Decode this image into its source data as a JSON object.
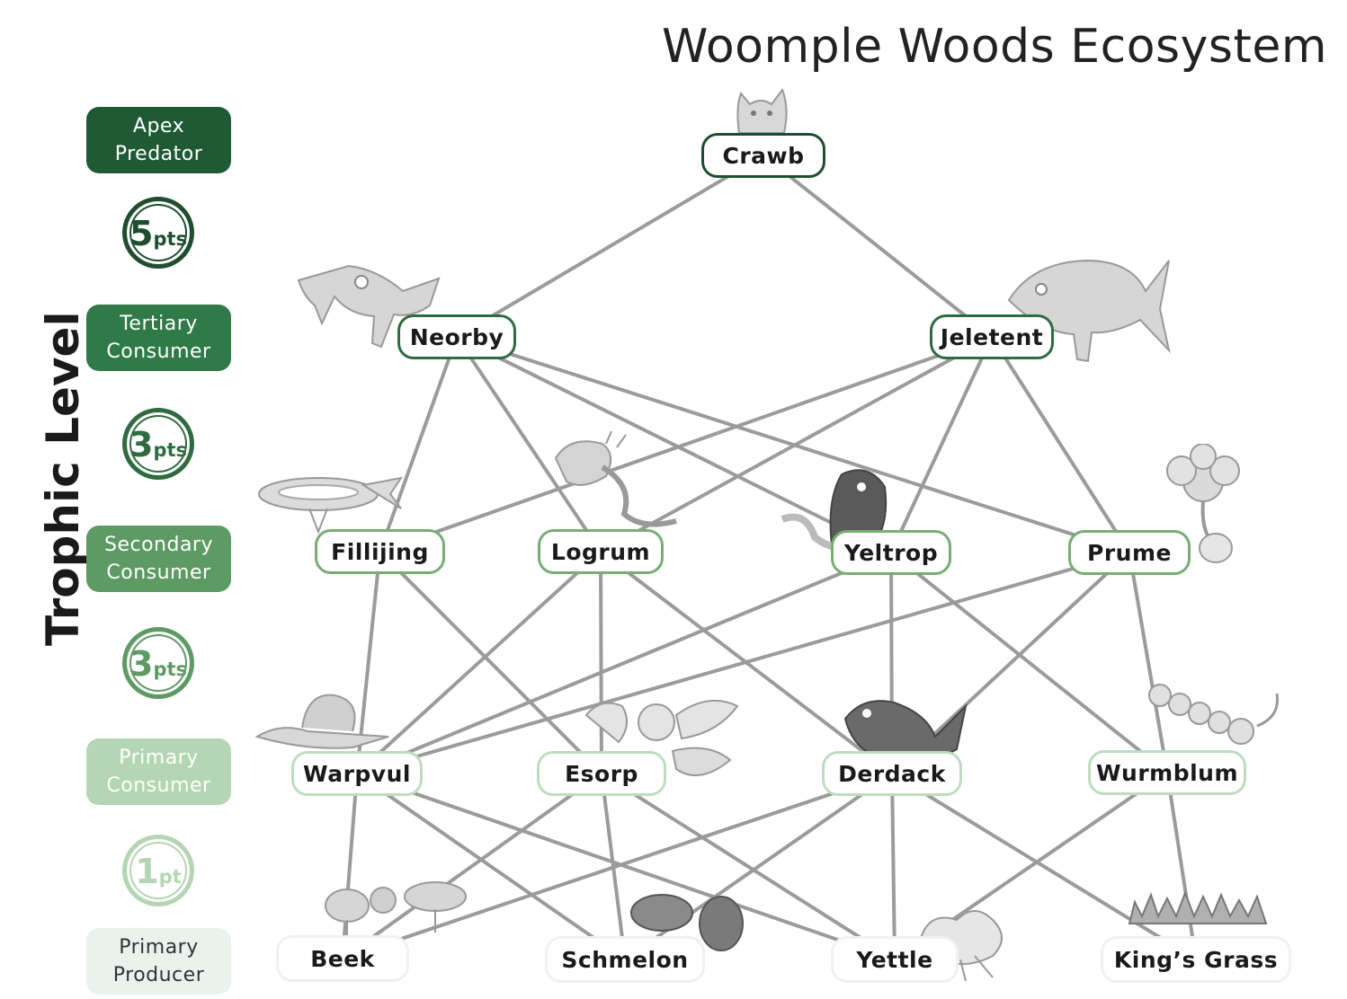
{
  "title": "Woomple Woods Ecosystem",
  "axis_label": "Trophic Level",
  "levels": [
    {
      "key": "apex",
      "label_line1": "Apex",
      "label_line2": "Predator",
      "points_num": "5",
      "points_unit": "pts",
      "bg": "#1f5a35",
      "text": "#ffffff",
      "ring": "#1f4d2f"
    },
    {
      "key": "tert",
      "label_line1": "Tertiary",
      "label_line2": "Consumer",
      "points_num": "3",
      "points_unit": "pts",
      "bg": "#2f7a47",
      "text": "#ffffff",
      "ring": "#2f6b40"
    },
    {
      "key": "sec",
      "label_line1": "Secondary",
      "label_line2": "Consumer",
      "points_num": "3",
      "points_unit": "pts",
      "bg": "#5e9a63",
      "text": "#ffffff",
      "ring": "#5e9a63"
    },
    {
      "key": "prim",
      "label_line1": "Primary",
      "label_line2": "Consumer",
      "points_num": "1",
      "points_unit": "pt",
      "bg": "#b4d6b4",
      "text": "#ffffff",
      "ring": "#b4d6b4"
    },
    {
      "key": "prod",
      "label_line1": "Primary",
      "label_line2": "Producer",
      "bg": "#eaf2ee",
      "text": "#333333"
    }
  ],
  "organisms": {
    "crawb": "Crawb",
    "neorby": "Neorby",
    "jeletent": "Jeletent",
    "fillijing": "Fillijing",
    "logrum": "Logrum",
    "yeltrop": "Yeltrop",
    "prume": "Prume",
    "warpvul": "Warpvul",
    "esorp": "Esorp",
    "derdack": "Derdack",
    "wurmblum": "Wurmblum",
    "beek": "Beek",
    "schmelon": "Schmelon",
    "yettle": "Yettle",
    "kings_grass": "King’s Grass"
  },
  "links": [
    [
      "crawb",
      "neorby"
    ],
    [
      "crawb",
      "jeletent"
    ],
    [
      "neorby",
      "fillijing"
    ],
    [
      "neorby",
      "logrum"
    ],
    [
      "neorby",
      "yeltrop"
    ],
    [
      "neorby",
      "prume"
    ],
    [
      "jeletent",
      "fillijing"
    ],
    [
      "jeletent",
      "logrum"
    ],
    [
      "jeletent",
      "yeltrop"
    ],
    [
      "jeletent",
      "prume"
    ],
    [
      "fillijing",
      "warpvul"
    ],
    [
      "fillijing",
      "esorp"
    ],
    [
      "logrum",
      "warpvul"
    ],
    [
      "logrum",
      "esorp"
    ],
    [
      "logrum",
      "derdack"
    ],
    [
      "yeltrop",
      "warpvul"
    ],
    [
      "yeltrop",
      "derdack"
    ],
    [
      "yeltrop",
      "wurmblum"
    ],
    [
      "prume",
      "warpvul"
    ],
    [
      "prume",
      "derdack"
    ],
    [
      "prume",
      "wurmblum"
    ],
    [
      "warpvul",
      "beek"
    ],
    [
      "warpvul",
      "schmelon"
    ],
    [
      "warpvul",
      "yettle"
    ],
    [
      "esorp",
      "beek"
    ],
    [
      "esorp",
      "schmelon"
    ],
    [
      "esorp",
      "yettle"
    ],
    [
      "derdack",
      "beek"
    ],
    [
      "derdack",
      "schmelon"
    ],
    [
      "derdack",
      "yettle"
    ],
    [
      "derdack",
      "kings_grass"
    ],
    [
      "wurmblum",
      "yettle"
    ],
    [
      "wurmblum",
      "kings_grass"
    ]
  ],
  "colors": {
    "link": "#9b9b9b",
    "sketch": "#b9b9b9"
  }
}
